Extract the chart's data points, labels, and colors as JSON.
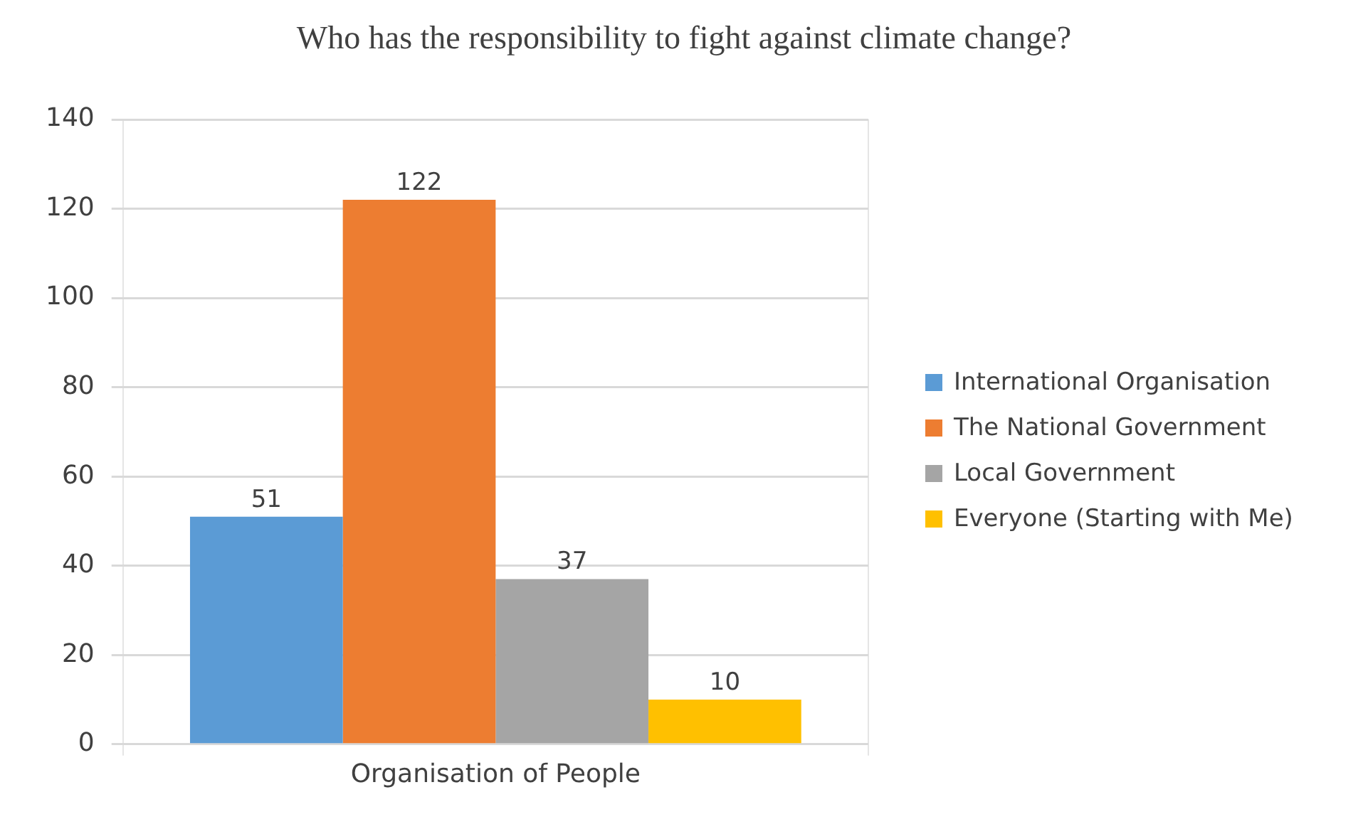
{
  "chart_data": {
    "type": "bar",
    "title": "Who has the responsibility to fight against climate change?",
    "categories": [
      "Organisation of People"
    ],
    "series": [
      {
        "name": "International Organisation",
        "color": "#5b9bd5",
        "values": [
          51
        ]
      },
      {
        "name": "The National Government",
        "color": "#ed7d31",
        "values": [
          122
        ]
      },
      {
        "name": "Local Government",
        "color": "#a5a5a5",
        "values": [
          37
        ]
      },
      {
        "name": "Everyone (Starting with Me)",
        "color": "#ffc000",
        "values": [
          10
        ]
      }
    ],
    "ylim": [
      0,
      140
    ],
    "yticks": [
      0,
      20,
      40,
      60,
      80,
      100,
      120,
      140
    ],
    "grid": true,
    "legend": "right",
    "data_labels": true
  }
}
